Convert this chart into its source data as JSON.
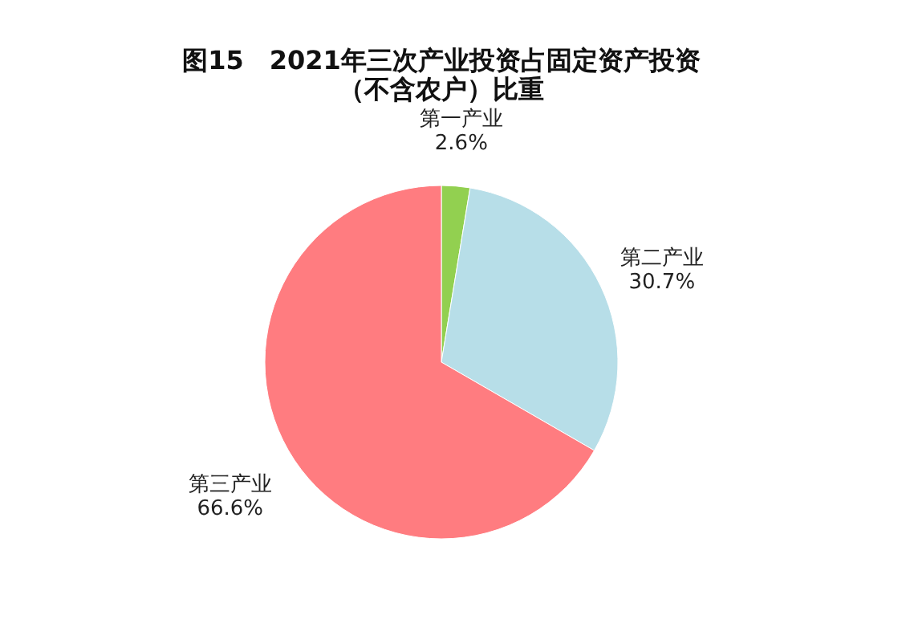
{
  "chart_data": {
    "type": "pie",
    "title": [
      "图15　2021年三次产业投资占固定资产投资",
      "（不含农户）比重"
    ],
    "categories": [
      "第一产业",
      "第二产业",
      "第三产业"
    ],
    "values": [
      2.6,
      30.7,
      66.6
    ],
    "value_labels": [
      "2.6%",
      "30.7%",
      "66.6%"
    ],
    "colors": [
      "#92d050",
      "#b7dee8",
      "#ff7c80"
    ],
    "legend": false
  }
}
